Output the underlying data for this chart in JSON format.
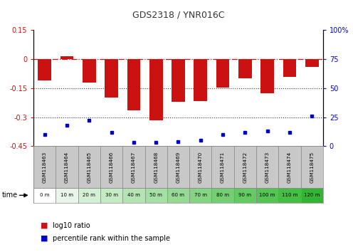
{
  "title": "GDS2318 / YNR016C",
  "categories": [
    "GSM118463",
    "GSM118464",
    "GSM118465",
    "GSM118466",
    "GSM118467",
    "GSM118468",
    "GSM118469",
    "GSM118470",
    "GSM118471",
    "GSM118472",
    "GSM118473",
    "GSM118474",
    "GSM118475"
  ],
  "time_labels": [
    "0 m",
    "10 m",
    "20 m",
    "30 m",
    "40 m",
    "50 m",
    "60 m",
    "70 m",
    "80 m",
    "90 m",
    "100 m",
    "110 m",
    "120 m"
  ],
  "log10_ratio": [
    -0.11,
    0.015,
    -0.12,
    -0.2,
    -0.265,
    -0.315,
    -0.22,
    -0.215,
    -0.145,
    -0.1,
    -0.175,
    -0.09,
    -0.04
  ],
  "percentile_rank": [
    10,
    18,
    22,
    12,
    3,
    3,
    4,
    5,
    10,
    12,
    13,
    12,
    26
  ],
  "ylim_left": [
    -0.45,
    0.15
  ],
  "ylim_right": [
    0,
    100
  ],
  "yticks_left": [
    0.15,
    0,
    -0.15,
    -0.3,
    -0.45
  ],
  "yticks_right": [
    100,
    75,
    50,
    25,
    0
  ],
  "bar_color": "#CC1111",
  "dot_color": "#0000CC",
  "zero_line_color": "#CC1111",
  "dotted_line_color": "#333333",
  "time_colors": [
    "#ffffff",
    "#eaf5ea",
    "#d4f0d4",
    "#c4ebc4",
    "#b4e4b4",
    "#a4dfa4",
    "#94da94",
    "#84d484",
    "#74cf74",
    "#64ca64",
    "#54c454",
    "#44bf44",
    "#34b434"
  ],
  "cell_bg_gray": "#c8c8c8",
  "cell_border": "#888888"
}
